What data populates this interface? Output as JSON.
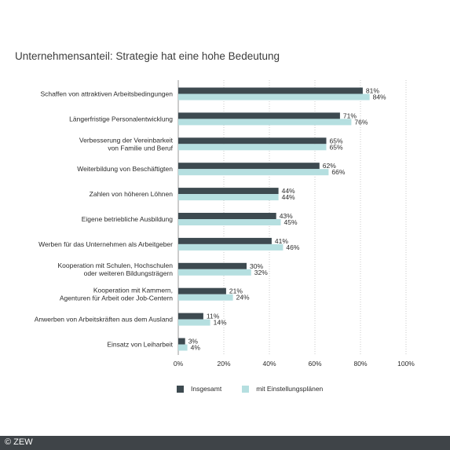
{
  "header": {
    "title": "Unternehmensanteil: Strategie hat eine hohe Bedeutung"
  },
  "footer": {
    "copyright": "© ZEW"
  },
  "colors": {
    "insgesamt": "#3d4a50",
    "einstellung": "#b5dfe0"
  },
  "chart_data": {
    "type": "bar",
    "orientation": "horizontal",
    "title": "Unternehmensanteil: Strategie hat eine hohe Bedeutung",
    "categories": [
      [
        "Schaffen von attraktiven Arbeitsbedingungen"
      ],
      [
        "Längerfristige Personalentwicklung"
      ],
      [
        "Verbesserung der Vereinbarkeit",
        "von Familie und Beruf"
      ],
      [
        "Weiterbildung von Beschäftigten"
      ],
      [
        "Zahlen von höheren Löhnen"
      ],
      [
        "Eigene betriebliche Ausbildung"
      ],
      [
        "Werben für das Unternehmen als Arbeitgeber"
      ],
      [
        "Kooperation mit Schulen, Hochschulen",
        "oder weiteren Bildungsträgern"
      ],
      [
        "Kooperation mit Kammern,",
        "Agenturen für Arbeit oder Job-Centern"
      ],
      [
        "Anwerben von Arbeitskräften aus dem Ausland"
      ],
      [
        "Einsatz von Leiharbeit"
      ]
    ],
    "series": [
      {
        "name": "Insgesamt",
        "values": [
          81,
          71,
          65,
          62,
          44,
          43,
          41,
          30,
          21,
          11,
          3
        ]
      },
      {
        "name": "mit Einstellungsplänen",
        "values": [
          84,
          76,
          65,
          66,
          44,
          45,
          46,
          32,
          24,
          14,
          4
        ]
      }
    ],
    "value_suffix": "%",
    "xlim": [
      0,
      100
    ],
    "xticks": [
      "0%",
      "20%",
      "40%",
      "60%",
      "80%",
      "100%"
    ],
    "grid": "vertical dotted",
    "legend": "bottom"
  }
}
